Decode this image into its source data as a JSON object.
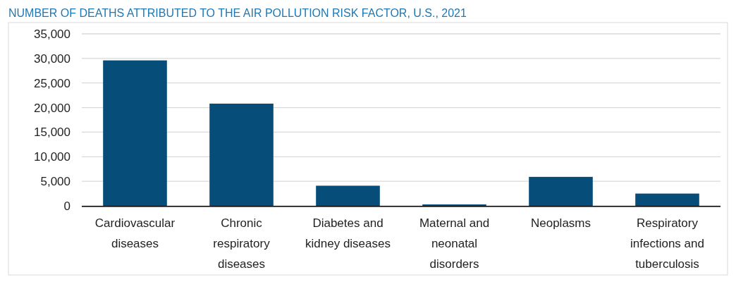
{
  "chart_data": {
    "type": "bar",
    "title": "NUMBER OF DEATHS ATTRIBUTED TO THE AIR POLLUTION RISK FACTOR, U.S., 2021",
    "categories": [
      "Cardiovascular diseases",
      "Chronic respiratory diseases",
      "Diabetes and kidney diseases",
      "Maternal and neonatal disorders",
      "Neoplasms",
      "Respiratory infections and tuberculosis"
    ],
    "values": [
      29600,
      20800,
      4100,
      300,
      5900,
      2500
    ],
    "color": "#064d7a",
    "ylim": [
      0,
      35000
    ],
    "yticks": [
      {
        "value": 0,
        "label": "0"
      },
      {
        "value": 5000,
        "label": "5,000"
      },
      {
        "value": 10000,
        "label": "10,000"
      },
      {
        "value": 15000,
        "label": "15,000"
      },
      {
        "value": 20000,
        "label": "20,000"
      },
      {
        "value": 25000,
        "label": "25,000"
      },
      {
        "value": 30000,
        "label": "30,000"
      },
      {
        "value": 35000,
        "label": "35,000"
      }
    ],
    "grid": "y"
  }
}
